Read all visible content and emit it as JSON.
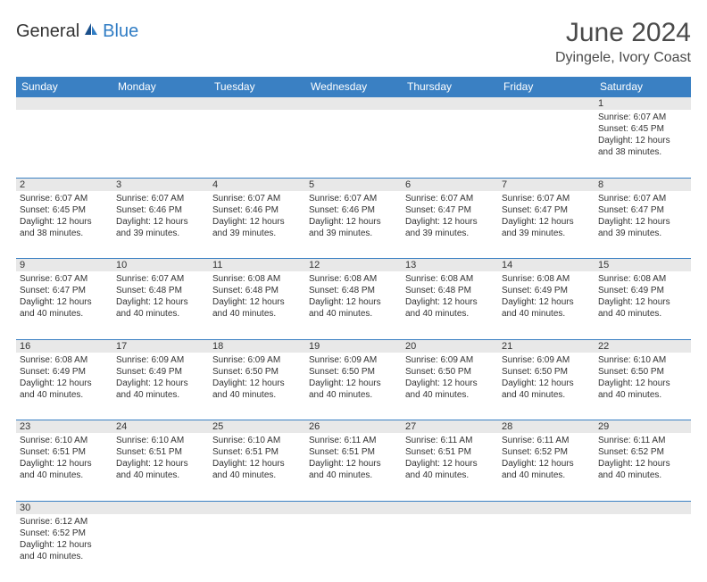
{
  "logo": {
    "general": "General",
    "blue": "Blue"
  },
  "title": "June 2024",
  "location": "Dyingele, Ivory Coast",
  "colors": {
    "header_bg": "#3a80c3",
    "header_text": "#ffffff",
    "daynum_bg": "#e8e8e8",
    "border": "#3a80c3",
    "text": "#333333",
    "logo_blue": "#2f7cc4"
  },
  "daysOfWeek": [
    "Sunday",
    "Monday",
    "Tuesday",
    "Wednesday",
    "Thursday",
    "Friday",
    "Saturday"
  ],
  "weeks": [
    [
      null,
      null,
      null,
      null,
      null,
      null,
      {
        "n": "1",
        "sunrise": "Sunrise: 6:07 AM",
        "sunset": "Sunset: 6:45 PM",
        "daylight1": "Daylight: 12 hours",
        "daylight2": "and 38 minutes."
      }
    ],
    [
      {
        "n": "2",
        "sunrise": "Sunrise: 6:07 AM",
        "sunset": "Sunset: 6:45 PM",
        "daylight1": "Daylight: 12 hours",
        "daylight2": "and 38 minutes."
      },
      {
        "n": "3",
        "sunrise": "Sunrise: 6:07 AM",
        "sunset": "Sunset: 6:46 PM",
        "daylight1": "Daylight: 12 hours",
        "daylight2": "and 39 minutes."
      },
      {
        "n": "4",
        "sunrise": "Sunrise: 6:07 AM",
        "sunset": "Sunset: 6:46 PM",
        "daylight1": "Daylight: 12 hours",
        "daylight2": "and 39 minutes."
      },
      {
        "n": "5",
        "sunrise": "Sunrise: 6:07 AM",
        "sunset": "Sunset: 6:46 PM",
        "daylight1": "Daylight: 12 hours",
        "daylight2": "and 39 minutes."
      },
      {
        "n": "6",
        "sunrise": "Sunrise: 6:07 AM",
        "sunset": "Sunset: 6:47 PM",
        "daylight1": "Daylight: 12 hours",
        "daylight2": "and 39 minutes."
      },
      {
        "n": "7",
        "sunrise": "Sunrise: 6:07 AM",
        "sunset": "Sunset: 6:47 PM",
        "daylight1": "Daylight: 12 hours",
        "daylight2": "and 39 minutes."
      },
      {
        "n": "8",
        "sunrise": "Sunrise: 6:07 AM",
        "sunset": "Sunset: 6:47 PM",
        "daylight1": "Daylight: 12 hours",
        "daylight2": "and 39 minutes."
      }
    ],
    [
      {
        "n": "9",
        "sunrise": "Sunrise: 6:07 AM",
        "sunset": "Sunset: 6:47 PM",
        "daylight1": "Daylight: 12 hours",
        "daylight2": "and 40 minutes."
      },
      {
        "n": "10",
        "sunrise": "Sunrise: 6:07 AM",
        "sunset": "Sunset: 6:48 PM",
        "daylight1": "Daylight: 12 hours",
        "daylight2": "and 40 minutes."
      },
      {
        "n": "11",
        "sunrise": "Sunrise: 6:08 AM",
        "sunset": "Sunset: 6:48 PM",
        "daylight1": "Daylight: 12 hours",
        "daylight2": "and 40 minutes."
      },
      {
        "n": "12",
        "sunrise": "Sunrise: 6:08 AM",
        "sunset": "Sunset: 6:48 PM",
        "daylight1": "Daylight: 12 hours",
        "daylight2": "and 40 minutes."
      },
      {
        "n": "13",
        "sunrise": "Sunrise: 6:08 AM",
        "sunset": "Sunset: 6:48 PM",
        "daylight1": "Daylight: 12 hours",
        "daylight2": "and 40 minutes."
      },
      {
        "n": "14",
        "sunrise": "Sunrise: 6:08 AM",
        "sunset": "Sunset: 6:49 PM",
        "daylight1": "Daylight: 12 hours",
        "daylight2": "and 40 minutes."
      },
      {
        "n": "15",
        "sunrise": "Sunrise: 6:08 AM",
        "sunset": "Sunset: 6:49 PM",
        "daylight1": "Daylight: 12 hours",
        "daylight2": "and 40 minutes."
      }
    ],
    [
      {
        "n": "16",
        "sunrise": "Sunrise: 6:08 AM",
        "sunset": "Sunset: 6:49 PM",
        "daylight1": "Daylight: 12 hours",
        "daylight2": "and 40 minutes."
      },
      {
        "n": "17",
        "sunrise": "Sunrise: 6:09 AM",
        "sunset": "Sunset: 6:49 PM",
        "daylight1": "Daylight: 12 hours",
        "daylight2": "and 40 minutes."
      },
      {
        "n": "18",
        "sunrise": "Sunrise: 6:09 AM",
        "sunset": "Sunset: 6:50 PM",
        "daylight1": "Daylight: 12 hours",
        "daylight2": "and 40 minutes."
      },
      {
        "n": "19",
        "sunrise": "Sunrise: 6:09 AM",
        "sunset": "Sunset: 6:50 PM",
        "daylight1": "Daylight: 12 hours",
        "daylight2": "and 40 minutes."
      },
      {
        "n": "20",
        "sunrise": "Sunrise: 6:09 AM",
        "sunset": "Sunset: 6:50 PM",
        "daylight1": "Daylight: 12 hours",
        "daylight2": "and 40 minutes."
      },
      {
        "n": "21",
        "sunrise": "Sunrise: 6:09 AM",
        "sunset": "Sunset: 6:50 PM",
        "daylight1": "Daylight: 12 hours",
        "daylight2": "and 40 minutes."
      },
      {
        "n": "22",
        "sunrise": "Sunrise: 6:10 AM",
        "sunset": "Sunset: 6:50 PM",
        "daylight1": "Daylight: 12 hours",
        "daylight2": "and 40 minutes."
      }
    ],
    [
      {
        "n": "23",
        "sunrise": "Sunrise: 6:10 AM",
        "sunset": "Sunset: 6:51 PM",
        "daylight1": "Daylight: 12 hours",
        "daylight2": "and 40 minutes."
      },
      {
        "n": "24",
        "sunrise": "Sunrise: 6:10 AM",
        "sunset": "Sunset: 6:51 PM",
        "daylight1": "Daylight: 12 hours",
        "daylight2": "and 40 minutes."
      },
      {
        "n": "25",
        "sunrise": "Sunrise: 6:10 AM",
        "sunset": "Sunset: 6:51 PM",
        "daylight1": "Daylight: 12 hours",
        "daylight2": "and 40 minutes."
      },
      {
        "n": "26",
        "sunrise": "Sunrise: 6:11 AM",
        "sunset": "Sunset: 6:51 PM",
        "daylight1": "Daylight: 12 hours",
        "daylight2": "and 40 minutes."
      },
      {
        "n": "27",
        "sunrise": "Sunrise: 6:11 AM",
        "sunset": "Sunset: 6:51 PM",
        "daylight1": "Daylight: 12 hours",
        "daylight2": "and 40 minutes."
      },
      {
        "n": "28",
        "sunrise": "Sunrise: 6:11 AM",
        "sunset": "Sunset: 6:52 PM",
        "daylight1": "Daylight: 12 hours",
        "daylight2": "and 40 minutes."
      },
      {
        "n": "29",
        "sunrise": "Sunrise: 6:11 AM",
        "sunset": "Sunset: 6:52 PM",
        "daylight1": "Daylight: 12 hours",
        "daylight2": "and 40 minutes."
      }
    ],
    [
      {
        "n": "30",
        "sunrise": "Sunrise: 6:12 AM",
        "sunset": "Sunset: 6:52 PM",
        "daylight1": "Daylight: 12 hours",
        "daylight2": "and 40 minutes."
      },
      null,
      null,
      null,
      null,
      null,
      null
    ]
  ]
}
